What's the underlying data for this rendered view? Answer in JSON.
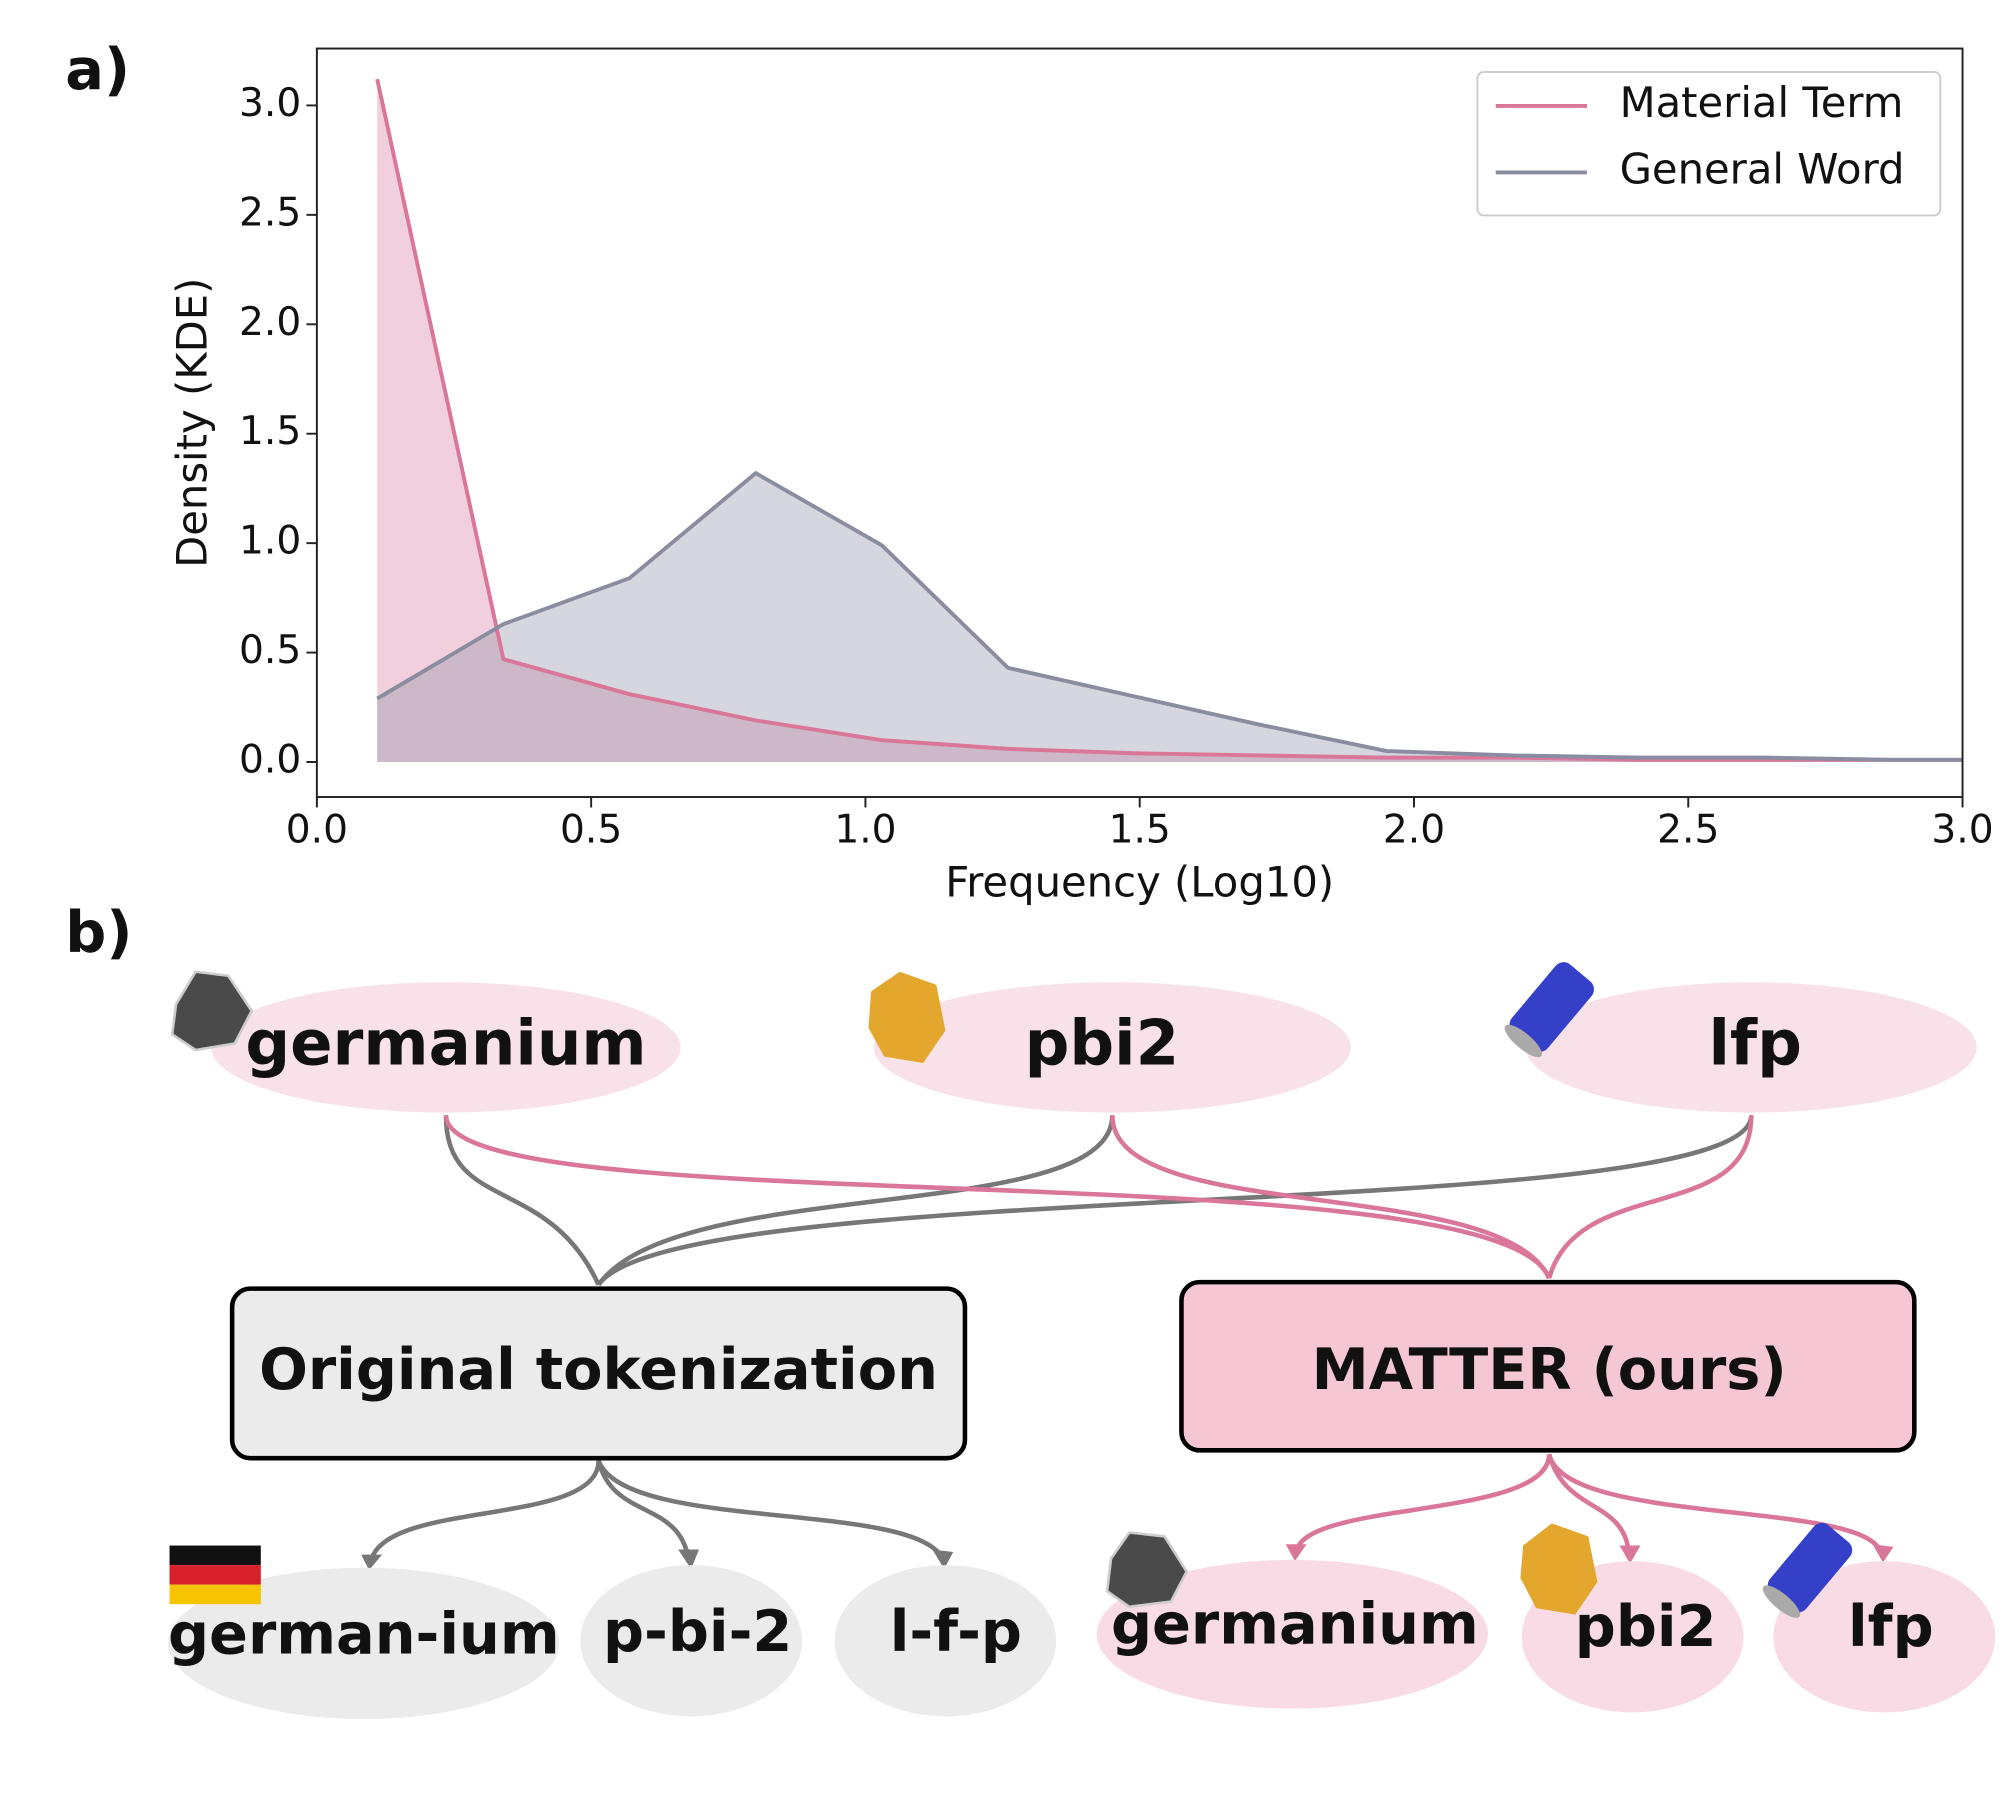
{
  "panel_a_label": "a)",
  "chart_data": {
    "type": "line",
    "x_label": "Frequency (Log10)",
    "y_label": "Density (KDE)",
    "x": [
      0.11,
      0.34,
      0.57,
      0.8,
      1.03,
      1.26,
      1.49,
      1.72,
      1.95,
      2.18,
      2.41,
      2.64,
      2.87,
      3.0
    ],
    "series": [
      {
        "name": "Material Term",
        "color": "#d9769a",
        "values": [
          3.12,
          0.47,
          0.31,
          0.19,
          0.1,
          0.06,
          0.04,
          0.03,
          0.02,
          0.02,
          0.01,
          0.01,
          0.01,
          0.01
        ]
      },
      {
        "name": "General Word",
        "color": "#8a8ca0",
        "values": [
          0.29,
          0.63,
          0.84,
          1.32,
          0.99,
          0.43,
          0.3,
          0.17,
          0.05,
          0.03,
          0.02,
          0.02,
          0.01,
          0.01
        ]
      }
    ],
    "xlim": [
      0,
      3
    ],
    "ylim": [
      -0.16,
      3.26
    ],
    "xticks": [
      {
        "value": 0,
        "label": "0.0"
      },
      0.5,
      {
        "value": 1,
        "label": "1.0"
      },
      1.5,
      {
        "value": 2,
        "label": "2.0"
      },
      2.5,
      {
        "value": 3,
        "label": "3.0"
      }
    ],
    "yticks": [
      {
        "value": 0,
        "label": "0.0"
      },
      0.5,
      {
        "value": 1,
        "label": "1.0"
      },
      1.5,
      {
        "value": 2,
        "label": "2.0"
      },
      2.5,
      {
        "value": 3,
        "label": "3.0"
      }
    ],
    "grid": false,
    "legend": "upper right",
    "fill": true
  },
  "panel_b_label": "b)",
  "diagram": {
    "top_nodes": [
      "germanium",
      "pbi2",
      "lfp"
    ],
    "original_box": "Original tokenization",
    "matter_box": "MATTER (ours)",
    "original_tokens": [
      "german-ium",
      "p-bi-2",
      "l-f-p"
    ],
    "matter_tokens": [
      "germanium",
      "pbi2",
      "lfp"
    ]
  }
}
